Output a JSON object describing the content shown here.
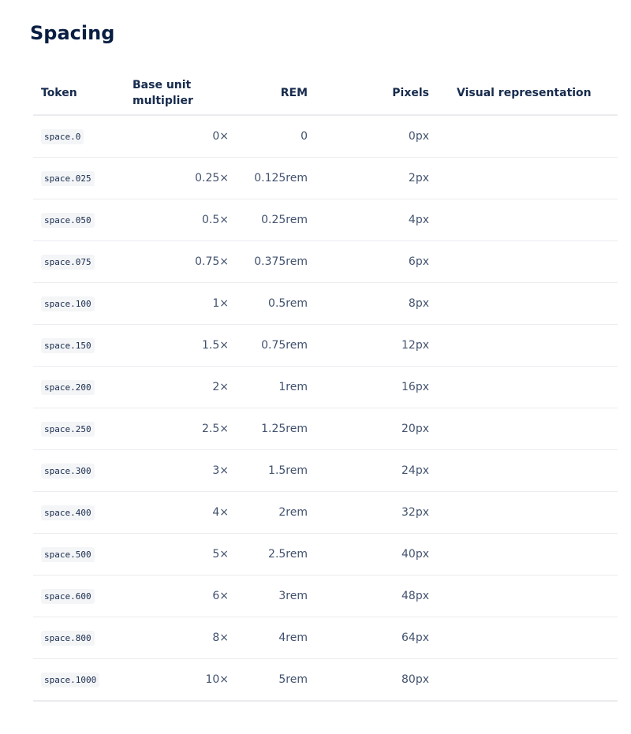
{
  "header": {
    "title": "Spacing"
  },
  "table": {
    "columns": [
      "Token",
      "Base unit multiplier",
      "REM",
      "Pixels",
      "Visual representation"
    ],
    "rows": [
      {
        "token": "space.0",
        "multiplier": "0×",
        "rem": "0",
        "pixels": {
          "value": 0,
          "label": "0px"
        }
      },
      {
        "token": "space.025",
        "multiplier": "0.25×",
        "rem": "0.125rem",
        "pixels": {
          "value": 2,
          "label": "2px"
        }
      },
      {
        "token": "space.050",
        "multiplier": "0.5×",
        "rem": "0.25rem",
        "pixels": {
          "value": 4,
          "label": "4px"
        }
      },
      {
        "token": "space.075",
        "multiplier": "0.75×",
        "rem": "0.375rem",
        "pixels": {
          "value": 6,
          "label": "6px"
        }
      },
      {
        "token": "space.100",
        "multiplier": "1×",
        "rem": "0.5rem",
        "pixels": {
          "value": 8,
          "label": "8px"
        }
      },
      {
        "token": "space.150",
        "multiplier": "1.5×",
        "rem": "0.75rem",
        "pixels": {
          "value": 12,
          "label": "12px"
        }
      },
      {
        "token": "space.200",
        "multiplier": "2×",
        "rem": "1rem",
        "pixels": {
          "value": 16,
          "label": "16px"
        }
      },
      {
        "token": "space.250",
        "multiplier": "2.5×",
        "rem": "1.25rem",
        "pixels": {
          "value": 20,
          "label": "20px"
        }
      },
      {
        "token": "space.300",
        "multiplier": "3×",
        "rem": "1.5rem",
        "pixels": {
          "value": 24,
          "label": "24px"
        }
      },
      {
        "token": "space.400",
        "multiplier": "4×",
        "rem": "2rem",
        "pixels": {
          "value": 32,
          "label": "32px"
        }
      },
      {
        "token": "space.500",
        "multiplier": "5×",
        "rem": "2.5rem",
        "pixels": {
          "value": 40,
          "label": "40px"
        }
      },
      {
        "token": "space.600",
        "multiplier": "6×",
        "rem": "3rem",
        "pixels": {
          "value": 48,
          "label": "48px"
        }
      },
      {
        "token": "space.800",
        "multiplier": "8×",
        "rem": "4rem",
        "pixels": {
          "value": 64,
          "label": "64px"
        }
      },
      {
        "token": "space.1000",
        "multiplier": "10×",
        "rem": "5rem",
        "pixels": {
          "value": 80,
          "label": "80px"
        }
      }
    ]
  }
}
